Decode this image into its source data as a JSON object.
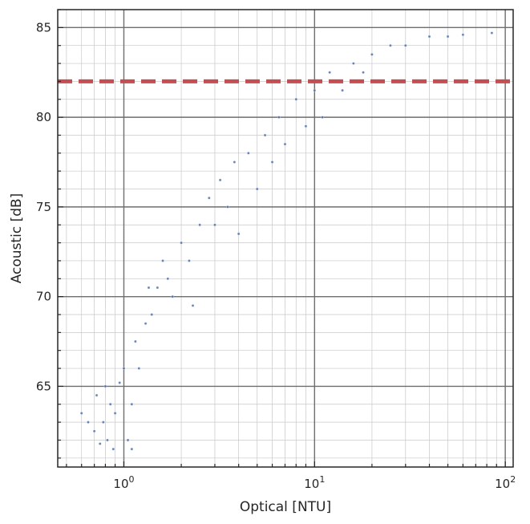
{
  "chart_data": {
    "type": "scatter",
    "title": "",
    "xlabel": "Optical [NTU]",
    "ylabel": "Acoustic [dB]",
    "x_scale": "log",
    "xlim": [
      0.45,
      110
    ],
    "ylim": [
      60.5,
      86.0
    ],
    "x_major_ticks": [
      {
        "value": 1,
        "base": "10",
        "exp": "0"
      },
      {
        "value": 10,
        "base": "10",
        "exp": "1"
      },
      {
        "value": 100,
        "base": "10",
        "exp": "2"
      }
    ],
    "y_ticks": [
      65,
      70,
      75,
      80,
      85
    ],
    "y_tick_labels": [
      "65",
      "70",
      "75",
      "80",
      "85"
    ],
    "grid": true,
    "colors": {
      "points": "#4c72b0",
      "threshold": "#c44e52",
      "grid": "#c8c8c8",
      "axis": "#262626"
    },
    "threshold": {
      "y": 82.0,
      "style": "dashed"
    },
    "series": [
      {
        "color": "#4c72b0",
        "points": [
          [
            0.6,
            63.5
          ],
          [
            0.65,
            63.0
          ],
          [
            0.7,
            62.5
          ],
          [
            0.72,
            64.5
          ],
          [
            0.75,
            61.8
          ],
          [
            0.78,
            63.0
          ],
          [
            0.8,
            65.0
          ],
          [
            0.82,
            62.0
          ],
          [
            0.85,
            64.0
          ],
          [
            0.88,
            61.5
          ],
          [
            0.9,
            63.5
          ],
          [
            0.95,
            65.2
          ],
          [
            1.0,
            66.0
          ],
          [
            1.05,
            62.0
          ],
          [
            1.1,
            64.0
          ],
          [
            1.1,
            61.5
          ],
          [
            1.15,
            67.5
          ],
          [
            1.2,
            66.0
          ],
          [
            1.3,
            68.5
          ],
          [
            1.35,
            70.5
          ],
          [
            1.4,
            69.0
          ],
          [
            1.5,
            70.5
          ],
          [
            1.6,
            72.0
          ],
          [
            1.7,
            71.0
          ],
          [
            1.8,
            70.0
          ],
          [
            2.0,
            73.0
          ],
          [
            2.2,
            72.0
          ],
          [
            2.3,
            69.5
          ],
          [
            2.5,
            74.0
          ],
          [
            2.8,
            75.5
          ],
          [
            3.0,
            74.0
          ],
          [
            3.2,
            76.5
          ],
          [
            3.5,
            75.0
          ],
          [
            3.8,
            77.5
          ],
          [
            4.0,
            73.5
          ],
          [
            4.5,
            78.0
          ],
          [
            5.0,
            76.0
          ],
          [
            5.5,
            79.0
          ],
          [
            6.0,
            77.5
          ],
          [
            6.5,
            80.0
          ],
          [
            7.0,
            78.5
          ],
          [
            8.0,
            81.0
          ],
          [
            9.0,
            79.5
          ],
          [
            10.0,
            81.5
          ],
          [
            11.0,
            80.0
          ],
          [
            12.0,
            82.5
          ],
          [
            14.0,
            81.5
          ],
          [
            16.0,
            83.0
          ],
          [
            18.0,
            82.5
          ],
          [
            20.0,
            83.5
          ],
          [
            25.0,
            84.0
          ],
          [
            30.0,
            84.0
          ],
          [
            40.0,
            84.5
          ],
          [
            50.0,
            84.5
          ],
          [
            60.0,
            84.6
          ],
          [
            85.0,
            84.7
          ]
        ]
      }
    ]
  }
}
